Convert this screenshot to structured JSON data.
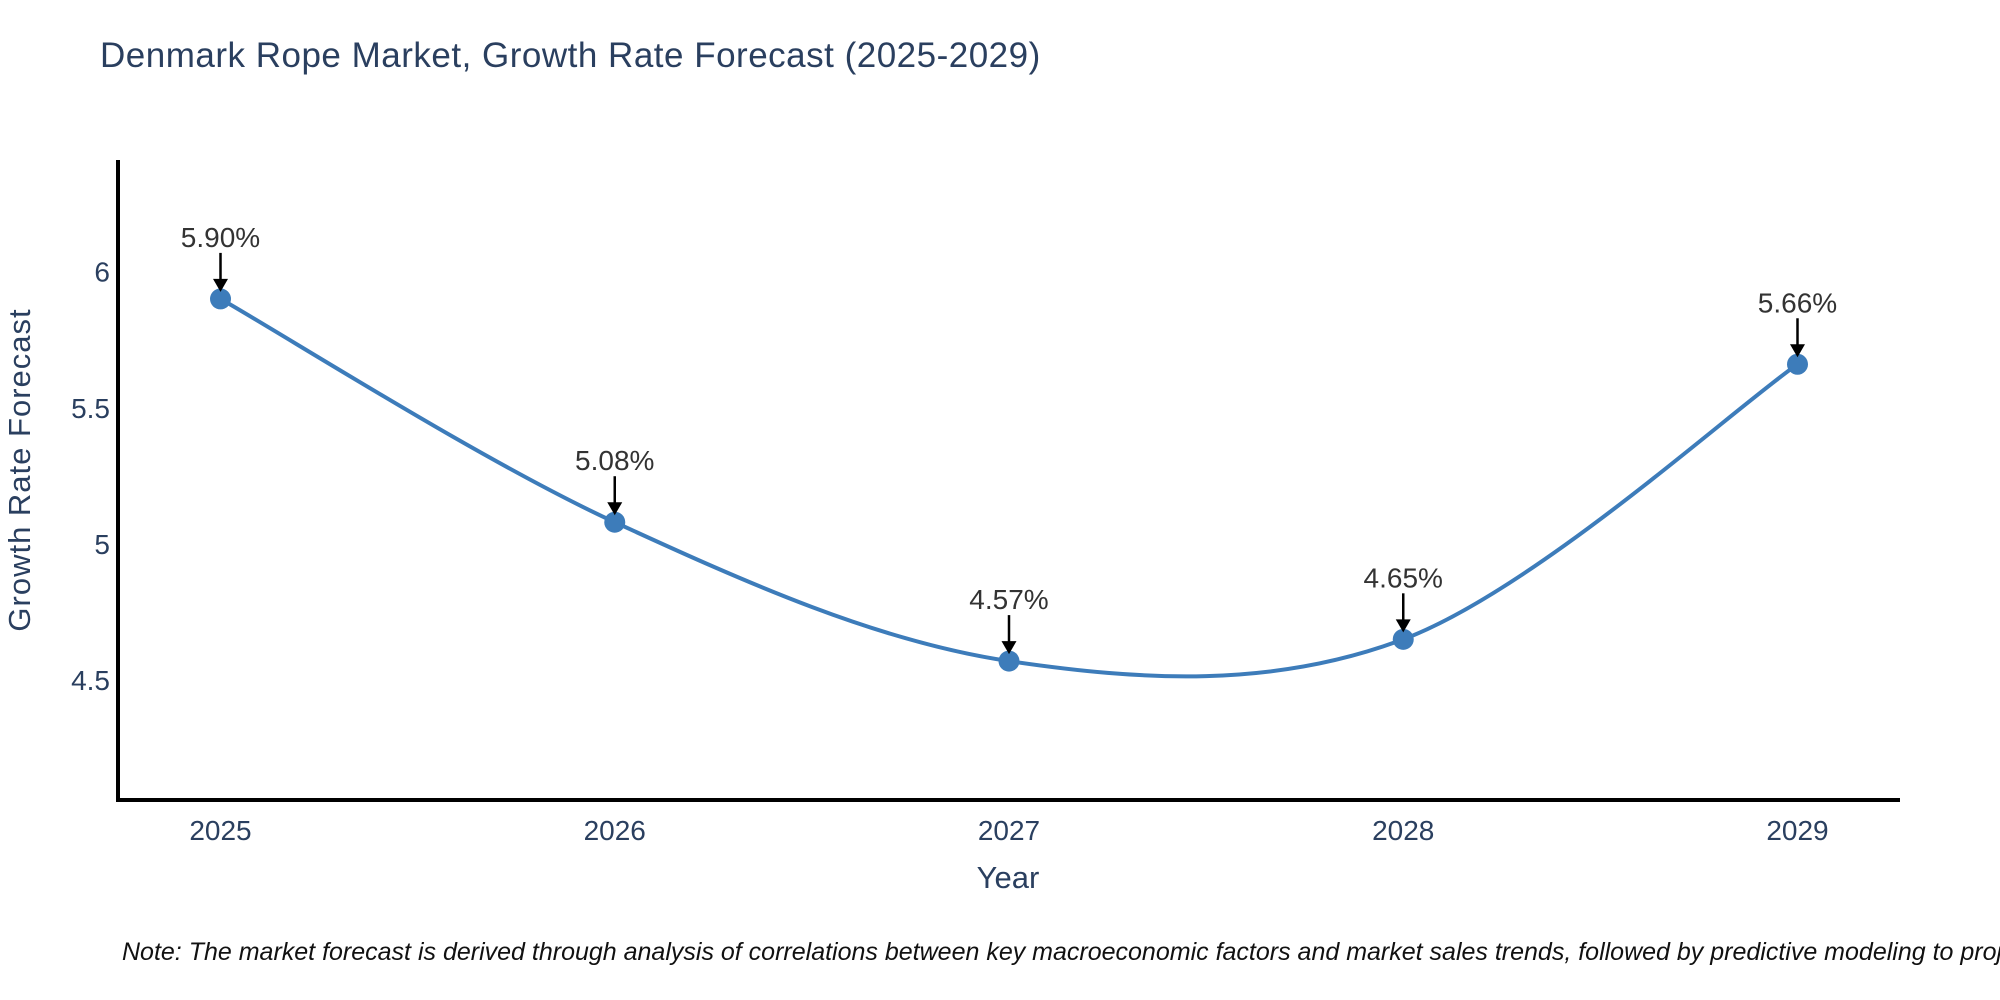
{
  "chart_data": {
    "type": "line",
    "title": "Denmark Rope Market, Growth Rate Forecast (2025-2029)",
    "xlabel": "Year",
    "ylabel": "Growth Rate Forecast",
    "x": [
      2025,
      2026,
      2027,
      2028,
      2029
    ],
    "values": [
      5.9,
      5.08,
      4.57,
      4.65,
      5.66
    ],
    "point_labels": [
      "5.90%",
      "5.08%",
      "4.57%",
      "4.65%",
      "5.66%"
    ],
    "xtick_labels": [
      "2025",
      "2026",
      "2027",
      "2028",
      "2029"
    ],
    "ytick_values": [
      4.5,
      5,
      5.5,
      6
    ],
    "ytick_labels": [
      "4.5",
      "5",
      "5.5",
      "6"
    ],
    "xlim": [
      2024.74,
      2029.26
    ],
    "ylim": [
      4.06,
      6.41
    ],
    "grid": false,
    "legend": "none",
    "curve": "spline",
    "line_color": "#3d7cba",
    "marker_color": "#3d7cba",
    "axis_line_color": "#000000",
    "title_color": "#2a3f5f",
    "axis_label_color": "#2a3f5f",
    "tick_label_color": "#2a3f5f",
    "point_label_color": "#333333",
    "arrow_color": "#000000",
    "note": "Note: The market forecast is derived through analysis of correlations between key macroeconomic factors and market sales trends, followed by predictive modeling to project future sales"
  }
}
